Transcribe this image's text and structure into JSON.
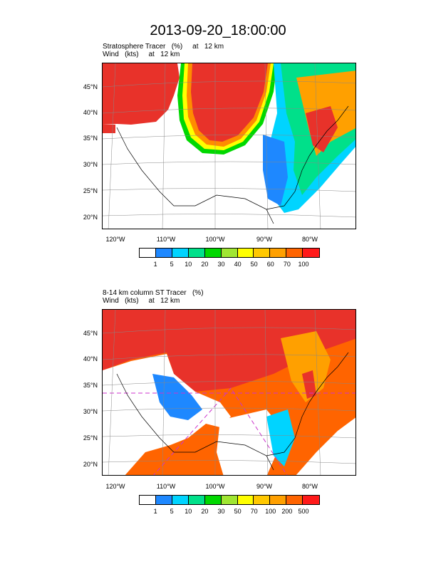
{
  "title": "2013-09-20_18:00:00",
  "panels": [
    {
      "line1": "Stratosphere Tracer   (%)     at   12 km",
      "line2": "Wind   (kts)     at   12 km",
      "lat_labels": [
        "45°N",
        "40°N",
        "35°N",
        "30°N",
        "25°N",
        "20°N"
      ],
      "lon_labels": [
        "120°W",
        "110°W",
        "100°W",
        "90°W",
        "80°W"
      ],
      "colorbar": {
        "colors": [
          "#ffffff",
          "#1e88ff",
          "#00d4ff",
          "#00e08a",
          "#00d800",
          "#a0e632",
          "#ffff00",
          "#ffc800",
          "#ffa000",
          "#ff6400",
          "#ff1a1a"
        ],
        "labels": [
          "1",
          "5",
          "10",
          "20",
          "30",
          "40",
          "50",
          "60",
          "70",
          "100"
        ]
      }
    },
    {
      "line1": "8-14 km column ST Tracer   (%)",
      "line2": "Wind   (kts)     at   12 km",
      "lat_labels": [
        "45°N",
        "40°N",
        "35°N",
        "30°N",
        "25°N",
        "20°N"
      ],
      "lon_labels": [
        "120°W",
        "110°W",
        "100°W",
        "90°W",
        "80°W"
      ],
      "colorbar": {
        "colors": [
          "#ffffff",
          "#1e88ff",
          "#00d4ff",
          "#00e08a",
          "#00d800",
          "#a0e632",
          "#ffff00",
          "#ffc800",
          "#ffa000",
          "#ff6400",
          "#ff1a1a"
        ],
        "labels": [
          "1",
          "5",
          "10",
          "20",
          "30",
          "50",
          "70",
          "100",
          "200",
          "500"
        ]
      }
    }
  ]
}
